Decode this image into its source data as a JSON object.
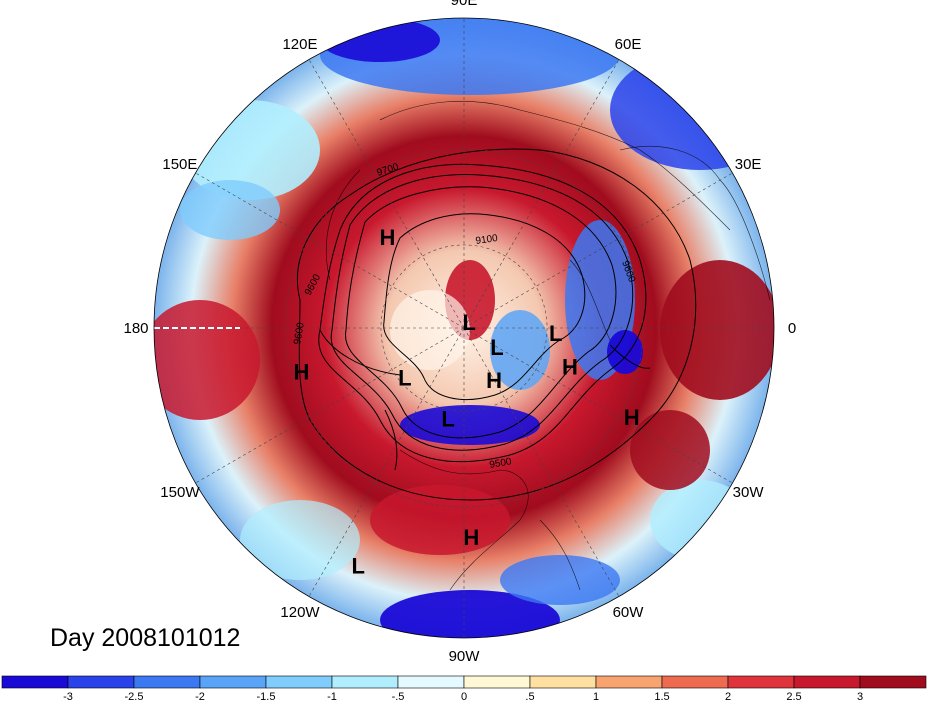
{
  "map": {
    "projection": "north-polar-stereographic",
    "longitude_labels": [
      {
        "text": "90E",
        "lon": 90
      },
      {
        "text": "60E",
        "lon": 60
      },
      {
        "text": "30E",
        "lon": 30
      },
      {
        "text": "0",
        "lon": 0
      },
      {
        "text": "30W",
        "lon": -30
      },
      {
        "text": "60W",
        "lon": -60
      },
      {
        "text": "90W",
        "lon": -90
      },
      {
        "text": "120W",
        "lon": -120
      },
      {
        "text": "150W",
        "lon": -150
      },
      {
        "text": "180",
        "lon": 180
      },
      {
        "text": "150E",
        "lon": 150
      },
      {
        "text": "120E",
        "lon": 120
      }
    ],
    "pressure_centers": [
      {
        "type": "H",
        "lon": 130,
        "lat": 48
      },
      {
        "type": "H",
        "lon": -165,
        "lat": 33
      },
      {
        "type": "H",
        "lon": -88,
        "lat": 22
      },
      {
        "type": "H",
        "lon": -28,
        "lat": 27
      },
      {
        "type": "H",
        "lon": -20,
        "lat": 50
      },
      {
        "type": "H",
        "lon": -60,
        "lat": 68
      },
      {
        "type": "L",
        "lon": -114,
        "lat": 10
      },
      {
        "type": "L",
        "lon": -140,
        "lat": 62
      },
      {
        "type": "L",
        "lon": -100,
        "lat": 57
      },
      {
        "type": "L",
        "lon": -30,
        "lat": 76
      },
      {
        "type": "L",
        "lon": -3,
        "lat": 57
      },
      {
        "type": "L",
        "lon": 50,
        "lat": 87
      }
    ],
    "contour_labels": [
      "9700",
      "9100",
      "9600",
      "9600",
      "9600",
      "9500"
    ]
  },
  "title": {
    "day_label": "Day 2008101012"
  },
  "colorbar": {
    "tick_labels": [
      "-3",
      "-2.5",
      "-2",
      "-1.5",
      "-1",
      "-.5",
      "0",
      ".5",
      "1",
      "1.5",
      "2",
      "2.5",
      "3"
    ],
    "colors": [
      "#1a0ad6",
      "#2a42ea",
      "#3c78f2",
      "#5aa4f8",
      "#80ccfc",
      "#b0eefe",
      "#e4faff",
      "#fff8d4",
      "#ffe0a0",
      "#f8a470",
      "#ee6a50",
      "#e0343c",
      "#c8182e",
      "#a00c1e"
    ]
  }
}
